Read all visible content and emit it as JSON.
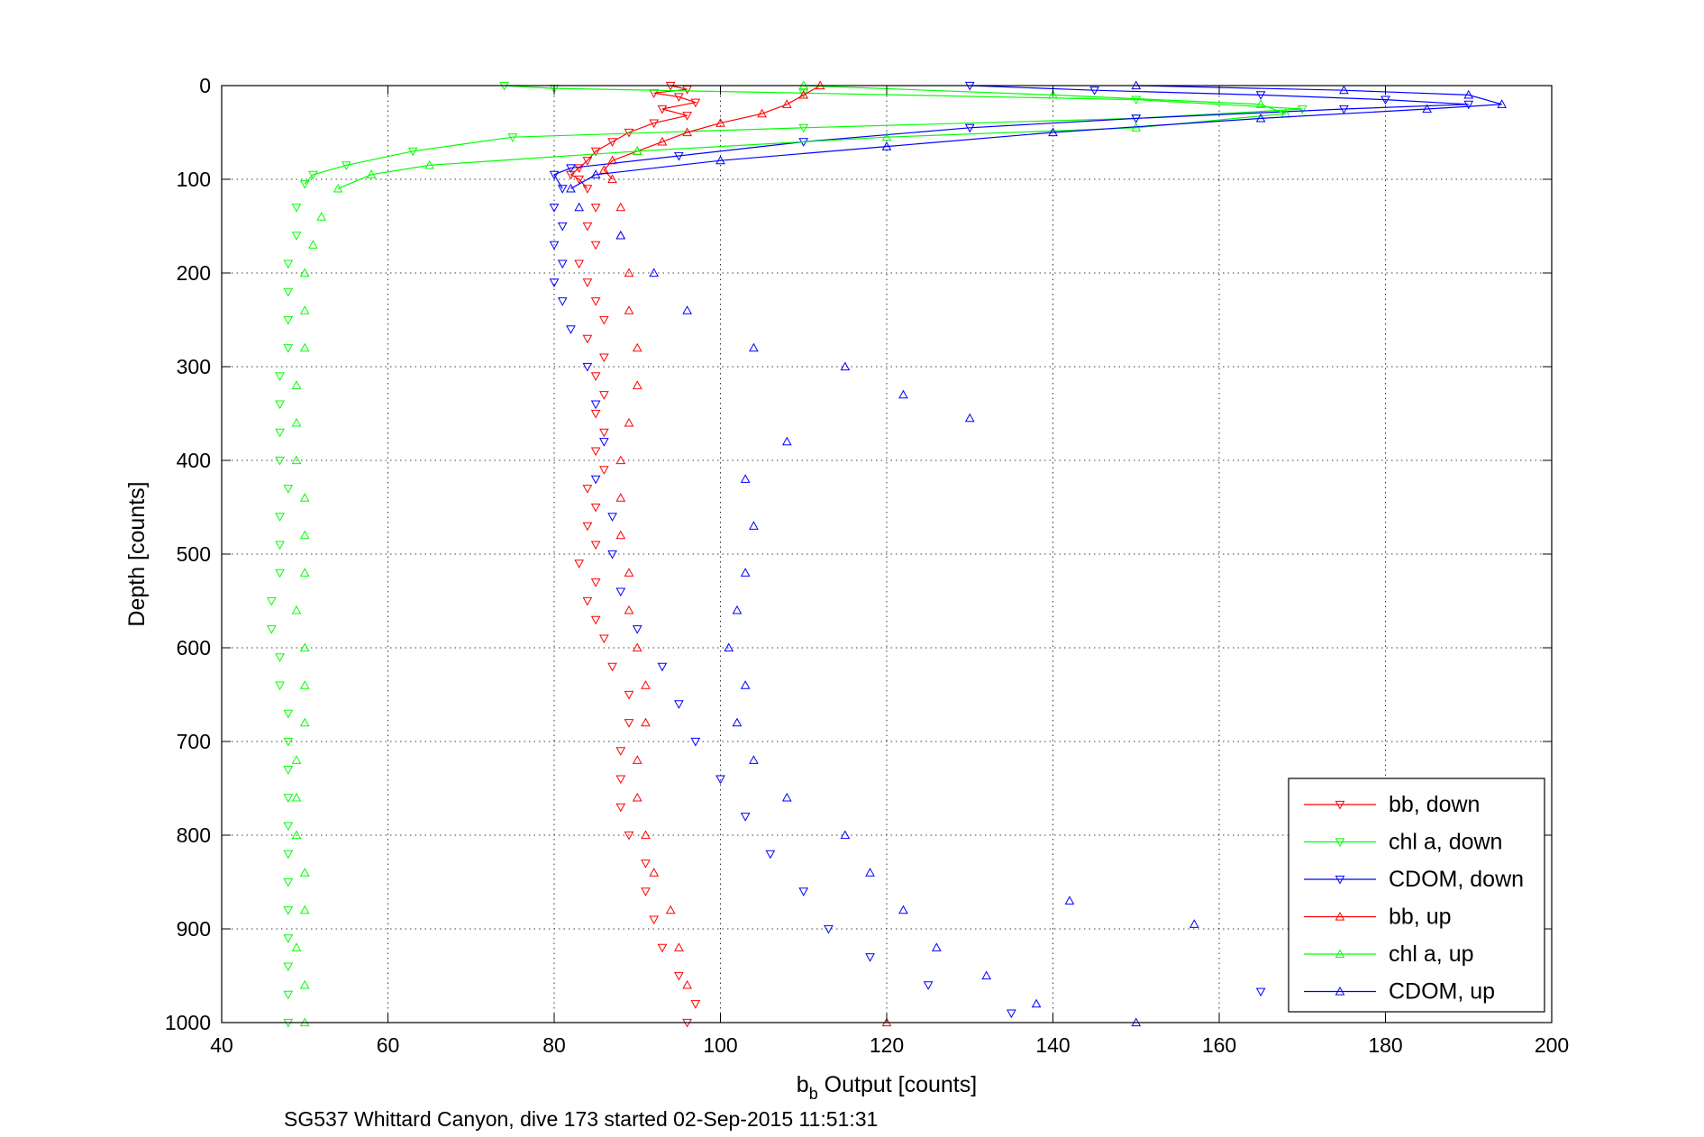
{
  "chart_data": {
    "type": "scatter",
    "title": "",
    "xlabel": {
      "main": "b",
      "sub": "b",
      "rest": " Output [counts]"
    },
    "ylabel": "Depth [counts]",
    "caption": "SG537 Whittard Canyon, dive 173 started 02-Sep-2015 11:51:31",
    "xlim": [
      40,
      200
    ],
    "ylim": [
      0,
      1000
    ],
    "y_reversed": true,
    "grid": true,
    "legend_position": "bottom-right",
    "x_ticks": [
      "40",
      "60",
      "80",
      "100",
      "120",
      "140",
      "160",
      "180",
      "200"
    ],
    "y_ticks": [
      "0",
      "100",
      "200",
      "300",
      "400",
      "500",
      "600",
      "700",
      "800",
      "900",
      "1000"
    ],
    "colors": {
      "bb": "#ff0000",
      "chl": "#00ff00",
      "cdom": "#0000ff"
    },
    "series": [
      {
        "name": "bb, down",
        "color": "#ff0000",
        "marker": "triangle-down",
        "points": [
          [
            94,
            0
          ],
          [
            96,
            4
          ],
          [
            92,
            8
          ],
          [
            95,
            12
          ],
          [
            97,
            18
          ],
          [
            93,
            25
          ],
          [
            96,
            32
          ],
          [
            92,
            40
          ],
          [
            89,
            50
          ],
          [
            87,
            60
          ],
          [
            85,
            70
          ],
          [
            84,
            80
          ],
          [
            83,
            88
          ],
          [
            82,
            95
          ],
          [
            83,
            100
          ],
          [
            84,
            110
          ],
          [
            85,
            130
          ],
          [
            84,
            150
          ],
          [
            85,
            170
          ],
          [
            83,
            190
          ],
          [
            84,
            210
          ],
          [
            85,
            230
          ],
          [
            86,
            250
          ],
          [
            84,
            270
          ],
          [
            86,
            290
          ],
          [
            85,
            310
          ],
          [
            86,
            330
          ],
          [
            85,
            350
          ],
          [
            86,
            370
          ],
          [
            85,
            390
          ],
          [
            86,
            410
          ],
          [
            84,
            430
          ],
          [
            85,
            450
          ],
          [
            84,
            470
          ],
          [
            85,
            490
          ],
          [
            83,
            510
          ],
          [
            85,
            530
          ],
          [
            84,
            550
          ],
          [
            85,
            570
          ],
          [
            86,
            590
          ],
          [
            87,
            620
          ],
          [
            89,
            650
          ],
          [
            89,
            680
          ],
          [
            88,
            710
          ],
          [
            88,
            740
          ],
          [
            88,
            770
          ],
          [
            89,
            800
          ],
          [
            91,
            830
          ],
          [
            91,
            860
          ],
          [
            92,
            890
          ],
          [
            93,
            920
          ],
          [
            95,
            950
          ],
          [
            97,
            980
          ],
          [
            96,
            1000
          ]
        ]
      },
      {
        "name": "chl a, down",
        "color": "#00ff00",
        "marker": "triangle-down",
        "points": [
          [
            74,
            0
          ],
          [
            80,
            3
          ],
          [
            110,
            8
          ],
          [
            150,
            15
          ],
          [
            170,
            25
          ],
          [
            150,
            35
          ],
          [
            110,
            45
          ],
          [
            75,
            55
          ],
          [
            63,
            70
          ],
          [
            55,
            85
          ],
          [
            51,
            95
          ],
          [
            50,
            105
          ],
          [
            49,
            130
          ],
          [
            49,
            160
          ],
          [
            48,
            190
          ],
          [
            48,
            220
          ],
          [
            48,
            250
          ],
          [
            48,
            280
          ],
          [
            47,
            310
          ],
          [
            47,
            340
          ],
          [
            47,
            370
          ],
          [
            47,
            400
          ],
          [
            48,
            430
          ],
          [
            47,
            460
          ],
          [
            47,
            490
          ],
          [
            47,
            520
          ],
          [
            46,
            550
          ],
          [
            46,
            580
          ],
          [
            47,
            610
          ],
          [
            47,
            640
          ],
          [
            48,
            670
          ],
          [
            48,
            700
          ],
          [
            48,
            730
          ],
          [
            48,
            760
          ],
          [
            48,
            790
          ],
          [
            48,
            820
          ],
          [
            48,
            850
          ],
          [
            48,
            880
          ],
          [
            48,
            910
          ],
          [
            48,
            940
          ],
          [
            48,
            970
          ],
          [
            48,
            1000
          ]
        ]
      },
      {
        "name": "CDOM, down",
        "color": "#0000ff",
        "marker": "triangle-down",
        "points": [
          [
            130,
            0
          ],
          [
            145,
            5
          ],
          [
            165,
            10
          ],
          [
            180,
            15
          ],
          [
            190,
            20
          ],
          [
            175,
            25
          ],
          [
            150,
            35
          ],
          [
            130,
            45
          ],
          [
            110,
            60
          ],
          [
            95,
            75
          ],
          [
            82,
            88
          ],
          [
            80,
            95
          ],
          [
            81,
            110
          ],
          [
            80,
            130
          ],
          [
            81,
            150
          ],
          [
            80,
            170
          ],
          [
            81,
            190
          ],
          [
            80,
            210
          ],
          [
            81,
            230
          ],
          [
            82,
            260
          ],
          [
            84,
            300
          ],
          [
            85,
            340
          ],
          [
            86,
            380
          ],
          [
            85,
            420
          ],
          [
            87,
            460
          ],
          [
            87,
            500
          ],
          [
            88,
            540
          ],
          [
            90,
            580
          ],
          [
            93,
            620
          ],
          [
            95,
            660
          ],
          [
            97,
            700
          ],
          [
            100,
            740
          ],
          [
            103,
            780
          ],
          [
            106,
            820
          ],
          [
            110,
            860
          ],
          [
            113,
            900
          ],
          [
            118,
            930
          ],
          [
            125,
            960
          ],
          [
            135,
            990
          ],
          [
            165,
            967
          ]
        ]
      },
      {
        "name": "bb, up",
        "color": "#ff0000",
        "marker": "triangle-up",
        "points": [
          [
            112,
            0
          ],
          [
            110,
            10
          ],
          [
            108,
            20
          ],
          [
            105,
            30
          ],
          [
            100,
            40
          ],
          [
            96,
            50
          ],
          [
            93,
            60
          ],
          [
            90,
            70
          ],
          [
            87,
            80
          ],
          [
            86,
            90
          ],
          [
            87,
            100
          ],
          [
            88,
            130
          ],
          [
            88,
            160
          ],
          [
            89,
            200
          ],
          [
            89,
            240
          ],
          [
            90,
            280
          ],
          [
            90,
            320
          ],
          [
            89,
            360
          ],
          [
            88,
            400
          ],
          [
            88,
            440
          ],
          [
            88,
            480
          ],
          [
            89,
            520
          ],
          [
            89,
            560
          ],
          [
            90,
            600
          ],
          [
            91,
            640
          ],
          [
            91,
            680
          ],
          [
            90,
            720
          ],
          [
            90,
            760
          ],
          [
            91,
            800
          ],
          [
            92,
            840
          ],
          [
            94,
            880
          ],
          [
            95,
            920
          ],
          [
            96,
            960
          ],
          [
            120,
            1000
          ]
        ]
      },
      {
        "name": "chl a, up",
        "color": "#00ff00",
        "marker": "triangle-up",
        "points": [
          [
            110,
            0
          ],
          [
            140,
            10
          ],
          [
            165,
            20
          ],
          [
            168,
            30
          ],
          [
            150,
            45
          ],
          [
            120,
            55
          ],
          [
            90,
            70
          ],
          [
            65,
            85
          ],
          [
            58,
            95
          ],
          [
            54,
            110
          ],
          [
            52,
            140
          ],
          [
            51,
            170
          ],
          [
            50,
            200
          ],
          [
            50,
            240
          ],
          [
            50,
            280
          ],
          [
            49,
            320
          ],
          [
            49,
            360
          ],
          [
            49,
            400
          ],
          [
            50,
            440
          ],
          [
            50,
            480
          ],
          [
            50,
            520
          ],
          [
            49,
            560
          ],
          [
            50,
            600
          ],
          [
            50,
            640
          ],
          [
            50,
            680
          ],
          [
            49,
            720
          ],
          [
            49,
            760
          ],
          [
            49,
            800
          ],
          [
            50,
            840
          ],
          [
            50,
            880
          ],
          [
            49,
            920
          ],
          [
            50,
            960
          ],
          [
            50,
            1000
          ]
        ]
      },
      {
        "name": "CDOM, up",
        "color": "#0000ff",
        "marker": "triangle-up",
        "points": [
          [
            150,
            0
          ],
          [
            175,
            5
          ],
          [
            190,
            10
          ],
          [
            194,
            20
          ],
          [
            185,
            25
          ],
          [
            165,
            35
          ],
          [
            140,
            50
          ],
          [
            120,
            65
          ],
          [
            100,
            80
          ],
          [
            85,
            95
          ],
          [
            82,
            110
          ],
          [
            83,
            130
          ],
          [
            88,
            160
          ],
          [
            92,
            200
          ],
          [
            96,
            240
          ],
          [
            104,
            280
          ],
          [
            115,
            300
          ],
          [
            122,
            330
          ],
          [
            130,
            355
          ],
          [
            108,
            380
          ],
          [
            103,
            420
          ],
          [
            104,
            470
          ],
          [
            103,
            520
          ],
          [
            102,
            560
          ],
          [
            101,
            600
          ],
          [
            103,
            640
          ],
          [
            102,
            680
          ],
          [
            104,
            720
          ],
          [
            108,
            760
          ],
          [
            115,
            800
          ],
          [
            118,
            840
          ],
          [
            122,
            880
          ],
          [
            126,
            920
          ],
          [
            132,
            950
          ],
          [
            138,
            980
          ],
          [
            150,
            1000
          ],
          [
            142,
            870
          ],
          [
            157,
            895
          ]
        ]
      }
    ]
  }
}
